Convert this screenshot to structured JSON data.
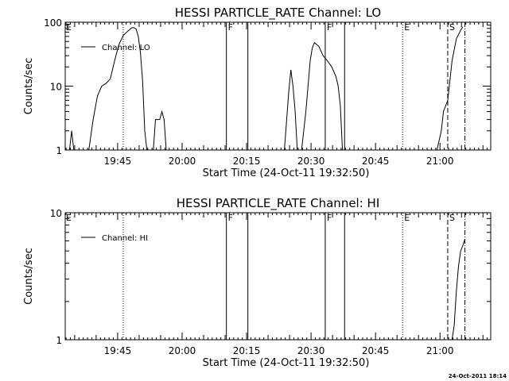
{
  "footer_timestamp": "24-Oct-2011 18:14",
  "chart_data": [
    {
      "type": "line",
      "title": "HESSI PARTICLE_RATE Channel: LO",
      "xlabel": "Start Time (24-Oct-11 19:32:50)",
      "ylabel": "Counts/sec",
      "yscale": "log",
      "ylim": [
        1,
        100
      ],
      "xlim_minutes_after_1932_50": [
        0,
        99
      ],
      "y_ticks": [
        {
          "label": "1",
          "value": 1
        },
        {
          "label": "10",
          "value": 10
        },
        {
          "label": "100",
          "value": 100
        }
      ],
      "x_ticks": [
        {
          "label": "19:45",
          "t": 12.2
        },
        {
          "label": "20:00",
          "t": 27.2
        },
        {
          "label": "20:15",
          "t": 42.2
        },
        {
          "label": "20:30",
          "t": 57.2
        },
        {
          "label": "20:45",
          "t": 72.2
        },
        {
          "label": "21:00",
          "t": 87.2
        }
      ],
      "legend": {
        "label": "Channel: LO",
        "position": "top-left"
      },
      "grid": false,
      "series": [
        {
          "name": "Channel: LO",
          "segments": [
            [
              [
                1.0,
                1.0
              ],
              [
                1.5,
                2.0
              ],
              [
                2.0,
                1.0
              ]
            ],
            [
              [
                5.5,
                1.0
              ],
              [
                6.5,
                3.0
              ],
              [
                7.5,
                7.0
              ],
              [
                8.5,
                10.0
              ],
              [
                9.5,
                11.0
              ],
              [
                10.5,
                13.0
              ],
              [
                11.5,
                25.0
              ],
              [
                12.5,
                45.0
              ],
              [
                13.5,
                62.0
              ],
              [
                14.5,
                72.0
              ],
              [
                15.5,
                82.0
              ],
              [
                16.0,
                82.0
              ],
              [
                16.5,
                78.0
              ],
              [
                17.0,
                60.0
              ],
              [
                17.5,
                33.0
              ],
              [
                18.0,
                12.0
              ],
              [
                18.5,
                2.0
              ],
              [
                19.0,
                1.0
              ]
            ],
            [
              [
                20.5,
                1.0
              ],
              [
                21.0,
                3.0
              ],
              [
                22.0,
                3.0
              ],
              [
                22.5,
                4.0
              ],
              [
                23.0,
                3.0
              ],
              [
                23.5,
                1.0
              ]
            ],
            [
              [
                51.0,
                1.0
              ],
              [
                52.0,
                8.0
              ],
              [
                52.5,
                18.0
              ],
              [
                53.0,
                10.0
              ],
              [
                53.5,
                4.0
              ],
              [
                54.0,
                1.0
              ]
            ],
            [
              [
                55.0,
                1.0
              ],
              [
                56.0,
                4.0
              ],
              [
                57.0,
                25.0
              ],
              [
                57.5,
                40.0
              ],
              [
                58.0,
                48.0
              ],
              [
                59.0,
                42.0
              ],
              [
                60.0,
                30.0
              ],
              [
                61.0,
                25.0
              ],
              [
                62.0,
                20.0
              ],
              [
                63.0,
                14.0
              ],
              [
                63.5,
                10.0
              ],
              [
                64.0,
                5.0
              ],
              [
                64.5,
                1.0
              ]
            ],
            [
              [
                86.5,
                1.0
              ],
              [
                87.5,
                2.0
              ],
              [
                88.0,
                4.0
              ],
              [
                89.0,
                6.0
              ],
              [
                90.0,
                25.0
              ],
              [
                91.0,
                55.0
              ],
              [
                92.0,
                75.0
              ],
              [
                92.5,
                85.0
              ]
            ]
          ]
        }
      ],
      "markers": [
        {
          "label": "E",
          "t": 0,
          "style": "label"
        },
        {
          "label": "",
          "t": 13.5,
          "style": "dotted"
        },
        {
          "label": "F",
          "t": 37.5,
          "style": "solid"
        },
        {
          "label": "",
          "t": 42.5,
          "style": "solid"
        },
        {
          "label": "F",
          "t": 60.5,
          "style": "solid"
        },
        {
          "label": "",
          "t": 65.0,
          "style": "solid"
        },
        {
          "label": "E",
          "t": 78.5,
          "style": "dotted"
        },
        {
          "label": "S",
          "t": 89.0,
          "style": "dashed"
        },
        {
          "label": "",
          "t": 93.0,
          "style": "dashdot"
        }
      ]
    },
    {
      "type": "line",
      "title": "HESSI PARTICLE_RATE Channel: HI",
      "xlabel": "Start Time (24-Oct-11 19:32:50)",
      "ylabel": "Counts/sec",
      "yscale": "log",
      "ylim": [
        1,
        10
      ],
      "xlim_minutes_after_1932_50": [
        0,
        99
      ],
      "y_ticks": [
        {
          "label": "1",
          "value": 1
        },
        {
          "label": "10",
          "value": 10
        }
      ],
      "x_ticks": [
        {
          "label": "19:45",
          "t": 12.2
        },
        {
          "label": "20:00",
          "t": 27.2
        },
        {
          "label": "20:15",
          "t": 42.2
        },
        {
          "label": "20:30",
          "t": 57.2
        },
        {
          "label": "20:45",
          "t": 72.2
        },
        {
          "label": "21:00",
          "t": 87.2
        }
      ],
      "legend": {
        "label": "Channel: HI",
        "position": "top-left"
      },
      "grid": false,
      "series": [
        {
          "name": "Channel: HI",
          "segments": [
            [
              [
                90.0,
                1.0
              ],
              [
                90.5,
                1.3
              ],
              [
                91.0,
                2.4
              ],
              [
                91.5,
                3.8
              ],
              [
                92.0,
                5.0
              ],
              [
                92.5,
                5.5
              ],
              [
                93.0,
                6.2
              ]
            ]
          ]
        }
      ],
      "markers": [
        {
          "label": "E",
          "t": 0,
          "style": "label"
        },
        {
          "label": "",
          "t": 13.5,
          "style": "dotted"
        },
        {
          "label": "F",
          "t": 37.5,
          "style": "solid"
        },
        {
          "label": "",
          "t": 42.5,
          "style": "solid"
        },
        {
          "label": "F",
          "t": 60.5,
          "style": "solid"
        },
        {
          "label": "",
          "t": 65.0,
          "style": "solid"
        },
        {
          "label": "E",
          "t": 78.5,
          "style": "dotted"
        },
        {
          "label": "S",
          "t": 89.0,
          "style": "dashed"
        },
        {
          "label": "",
          "t": 93.0,
          "style": "dashdot"
        }
      ]
    }
  ]
}
